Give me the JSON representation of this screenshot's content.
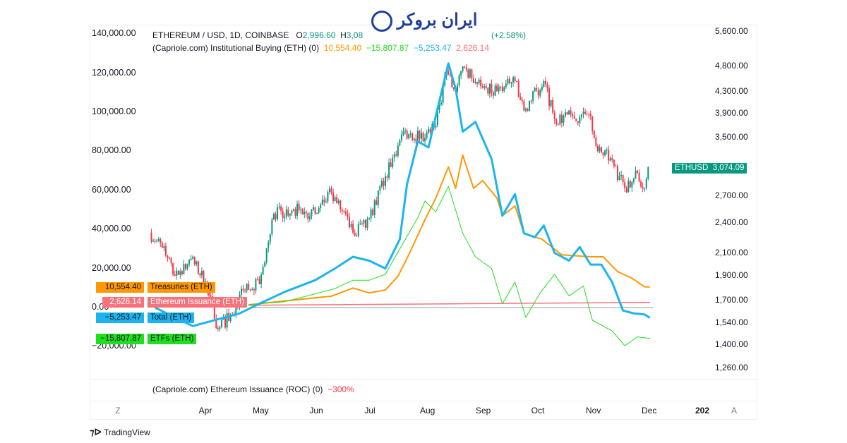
{
  "brand_logo": "ایران بروکر",
  "watermark": "TradingView",
  "legend": {
    "symbol": "ETHEREUM / USD, 1D, COINBASE",
    "open_label": "O",
    "open": "2,996.60",
    "high_label": "H",
    "high": "3,08",
    "change": "(+2.58%)",
    "indicator": "(Capriole.com) Institutional Buying (ETH) (0)",
    "values": [
      "10,554.40",
      "−15,807.87",
      "−5,253.47",
      "2,626.14"
    ]
  },
  "lower_pane": {
    "title": "(Capriole.com) Ethereum Issuance (ROC) (0)",
    "value": "−300%"
  },
  "price_tag": {
    "symbol": "ETHUSD",
    "value": "3,074.09"
  },
  "series_labels": [
    {
      "value": "10,554.40",
      "name": "Treasuries (ETH)",
      "color": "#ff9800"
    },
    {
      "value": "2,626.14",
      "name": "Ethereum Issuance (ETH)",
      "color": "#f7727a"
    },
    {
      "value": "−5,253.47",
      "name": "Total (ETH)",
      "color": "#1cb4ee"
    },
    {
      "value": "−15,807.87",
      "name": "ETFs (ETH)",
      "color": "#1ee01e"
    }
  ],
  "left_axis": [
    "140,000.00",
    "120,000.00",
    "100,000.00",
    "80,000.00",
    "60,000.00",
    "40,000.00",
    "20,000.00",
    "0.00",
    "−20,000.00"
  ],
  "right_axis": [
    "5,600.00",
    "4,800.00",
    "4,300.00",
    "3,900.00",
    "3,500.00",
    "2,700.00",
    "2,400.00",
    "2,100.00",
    "1,900.00",
    "1,700.00",
    "1,540.00",
    "1,400.00",
    "1,260.00"
  ],
  "time_axis": [
    "Z",
    "Apr",
    "May",
    "Jun",
    "Jul",
    "Aug",
    "Sep",
    "Oct",
    "Nov",
    "Dec",
    "202",
    "A"
  ],
  "chart_data": {
    "type": "line",
    "price_scale": "log",
    "ylim_right": [
      1260,
      5600
    ],
    "ylim_left": [
      -20000,
      140000
    ],
    "grid": false,
    "price_closes": [
      [
        "2025-03-01",
        2300
      ],
      [
        "2025-03-08",
        2150
      ],
      [
        "2025-03-15",
        1900
      ],
      [
        "2025-03-24",
        2050
      ],
      [
        "2025-04-01",
        1850
      ],
      [
        "2025-04-08",
        1500
      ],
      [
        "2025-04-15",
        1600
      ],
      [
        "2025-04-22",
        1780
      ],
      [
        "2025-05-01",
        1830
      ],
      [
        "2025-05-09",
        2500
      ],
      [
        "2025-05-20",
        2550
      ],
      [
        "2025-06-01",
        2500
      ],
      [
        "2025-06-10",
        2750
      ],
      [
        "2025-06-22",
        2300
      ],
      [
        "2025-07-01",
        2450
      ],
      [
        "2025-07-10",
        2950
      ],
      [
        "2025-07-20",
        3600
      ],
      [
        "2025-08-01",
        3500
      ],
      [
        "2025-08-07",
        3700
      ],
      [
        "2025-08-13",
        4700
      ],
      [
        "2025-08-18",
        4300
      ],
      [
        "2025-08-22",
        4800
      ],
      [
        "2025-09-01",
        4400
      ],
      [
        "2025-09-10",
        4300
      ],
      [
        "2025-09-20",
        4500
      ],
      [
        "2025-09-25",
        3950
      ],
      [
        "2025-10-06",
        4500
      ],
      [
        "2025-10-12",
        3800
      ],
      [
        "2025-10-22",
        3850
      ],
      [
        "2025-11-01",
        3850
      ],
      [
        "2025-11-05",
        3300
      ],
      [
        "2025-11-12",
        3200
      ],
      [
        "2025-11-20",
        2800
      ],
      [
        "2025-11-27",
        3000
      ],
      [
        "2025-12-01",
        2800
      ],
      [
        "2025-12-03",
        3074.09
      ]
    ],
    "series": [
      {
        "name": "Total (ETH)",
        "color": "#1cb4ee",
        "width": 3,
        "points": [
          [
            "2025-03-04",
            0
          ],
          [
            "2025-03-25",
            -9500
          ],
          [
            "2025-04-10",
            -5500
          ],
          [
            "2025-04-20",
            -3000
          ],
          [
            "2025-05-01",
            2000
          ],
          [
            "2025-05-15",
            8000
          ],
          [
            "2025-06-01",
            14000
          ],
          [
            "2025-06-12",
            20000
          ],
          [
            "2025-06-22",
            26000
          ],
          [
            "2025-07-01",
            24000
          ],
          [
            "2025-07-10",
            20000
          ],
          [
            "2025-07-18",
            35000
          ],
          [
            "2025-07-22",
            63000
          ],
          [
            "2025-07-28",
            85000
          ],
          [
            "2025-08-03",
            82000
          ],
          [
            "2025-08-07",
            98000
          ],
          [
            "2025-08-14",
            125000
          ],
          [
            "2025-08-18",
            112000
          ],
          [
            "2025-08-22",
            90000
          ],
          [
            "2025-08-29",
            95000
          ],
          [
            "2025-09-07",
            76000
          ],
          [
            "2025-09-13",
            47000
          ],
          [
            "2025-09-20",
            58000
          ],
          [
            "2025-09-25",
            38000
          ],
          [
            "2025-10-01",
            36000
          ],
          [
            "2025-10-06",
            42000
          ],
          [
            "2025-10-12",
            28000
          ],
          [
            "2025-10-20",
            24000
          ],
          [
            "2025-10-26",
            31000
          ],
          [
            "2025-11-01",
            22000
          ],
          [
            "2025-11-07",
            22000
          ],
          [
            "2025-11-13",
            13000
          ],
          [
            "2025-11-19",
            -1500
          ],
          [
            "2025-11-25",
            -3000
          ],
          [
            "2025-12-01",
            -3500
          ],
          [
            "2025-12-04",
            -5253.47
          ]
        ]
      },
      {
        "name": "Treasuries (ETH)",
        "color": "#ff9800",
        "width": 2,
        "points": [
          [
            "2025-04-25",
            1400
          ],
          [
            "2025-05-15",
            3400
          ],
          [
            "2025-06-10",
            5800
          ],
          [
            "2025-06-22",
            10000
          ],
          [
            "2025-07-01",
            7500
          ],
          [
            "2025-07-10",
            9000
          ],
          [
            "2025-07-17",
            16000
          ],
          [
            "2025-07-23",
            27000
          ],
          [
            "2025-08-01",
            45000
          ],
          [
            "2025-08-07",
            56000
          ],
          [
            "2025-08-14",
            72000
          ],
          [
            "2025-08-18",
            61000
          ],
          [
            "2025-08-22",
            78000
          ],
          [
            "2025-08-28",
            61000
          ],
          [
            "2025-09-02",
            65000
          ],
          [
            "2025-09-10",
            56000
          ],
          [
            "2025-09-13",
            47000
          ],
          [
            "2025-09-20",
            52000
          ],
          [
            "2025-09-25",
            38000
          ],
          [
            "2025-10-05",
            35000
          ],
          [
            "2025-10-16",
            27000
          ],
          [
            "2025-11-01",
            26000
          ],
          [
            "2025-11-08",
            26000
          ],
          [
            "2025-11-16",
            18400
          ],
          [
            "2025-11-24",
            15000
          ],
          [
            "2025-12-01",
            10600
          ],
          [
            "2025-12-04",
            10554.4
          ]
        ]
      },
      {
        "name": "ETFs (ETH)",
        "color": "#1ee01e",
        "width": 1,
        "points": [
          [
            "2025-04-25",
            1500
          ],
          [
            "2025-05-15",
            3000
          ],
          [
            "2025-06-01",
            7000
          ],
          [
            "2025-06-12",
            9700
          ],
          [
            "2025-06-22",
            14000
          ],
          [
            "2025-07-01",
            14000
          ],
          [
            "2025-07-10",
            17000
          ],
          [
            "2025-07-18",
            30000
          ],
          [
            "2025-07-28",
            46000
          ],
          [
            "2025-08-01",
            54500
          ],
          [
            "2025-08-07",
            49000
          ],
          [
            "2025-08-14",
            62000
          ],
          [
            "2025-08-22",
            38000
          ],
          [
            "2025-08-29",
            26000
          ],
          [
            "2025-09-07",
            20000
          ],
          [
            "2025-09-13",
            2000
          ],
          [
            "2025-09-20",
            13000
          ],
          [
            "2025-09-26",
            -5000
          ],
          [
            "2025-10-04",
            7500
          ],
          [
            "2025-10-12",
            17000
          ],
          [
            "2025-10-20",
            6000
          ],
          [
            "2025-10-28",
            11000
          ],
          [
            "2025-11-02",
            -6500
          ],
          [
            "2025-11-13",
            -12000
          ],
          [
            "2025-11-20",
            -19500
          ],
          [
            "2025-11-27",
            -15000
          ],
          [
            "2025-12-04",
            -15807.87
          ]
        ]
      },
      {
        "name": "Ethereum Issuance (ETH)",
        "color": "#f7727a",
        "width": 1.5,
        "points": [
          [
            "2025-04-25",
            1200
          ],
          [
            "2025-12-04",
            2626.14
          ]
        ]
      }
    ],
    "colors": {
      "up": "#089981",
      "down": "#f23645"
    }
  }
}
